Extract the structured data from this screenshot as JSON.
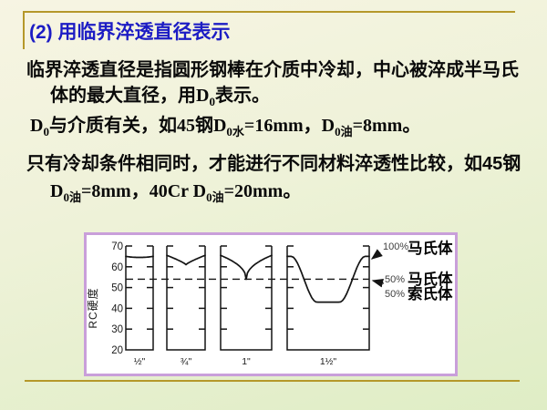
{
  "slide": {
    "title": "(2) 用临界淬透直径表示",
    "p1l1": "临界淬透直径是指圆形钢棒在介质中冷却，中心被淬成半马氏",
    "p1l2": [
      {
        "t": "体的最大直径，用"
      },
      {
        "t": "D"
      },
      {
        "t": "0"
      },
      {
        "t": "表示。"
      }
    ],
    "p2": [
      {
        "t": "D"
      },
      {
        "t": "0"
      },
      {
        "t": "与介质有关，如"
      },
      {
        "t": "45"
      },
      {
        "t": "钢"
      },
      {
        "t": "D"
      },
      {
        "t": "0水"
      },
      {
        "t": "=16mm"
      },
      {
        "t": "，"
      },
      {
        "t": "D"
      },
      {
        "t": "0油"
      },
      {
        "t": "=8mm"
      },
      {
        "t": "。"
      }
    ],
    "p3l1": "只有冷却条件相同时，才能进行不同材料淬透性比较，如45钢",
    "p3l2": [
      {
        "t": "D"
      },
      {
        "t": "0油"
      },
      {
        "t": "=8mm"
      },
      {
        "t": "，"
      },
      {
        "t": "40Cr D"
      },
      {
        "t": "0油"
      },
      {
        "t": "=20mm"
      },
      {
        "t": "。"
      }
    ]
  },
  "colors": {
    "title_blue": "#1c1cc4",
    "gold_rule": "#b5982a",
    "chart_border_purple": "#c99fda",
    "chart_background": "#ffffff",
    "body_text": "#0a0a0a",
    "annotation_percent_gray": "#3f3f3f"
  },
  "chart_data": {
    "type": "line",
    "title": "",
    "xlabel": "",
    "ylabel": "RC硬度",
    "ylim": [
      20,
      70
    ],
    "yticks": [
      70,
      60,
      50,
      40,
      30,
      20
    ],
    "grid": false,
    "half_martensite_hardness": 54,
    "specimens": [
      {
        "label": "½\"",
        "surface": 65,
        "center": 64.5,
        "profile": "shallow"
      },
      {
        "label": "¾\"",
        "surface": 65.5,
        "center": 61,
        "profile": "v"
      },
      {
        "label": "1\"",
        "surface": 65.5,
        "center": 54,
        "profile": "sharp-v"
      },
      {
        "label": "1½\"",
        "surface": 65,
        "center": 43,
        "profile": "wide-u"
      }
    ],
    "annotations": [
      {
        "pct": "100%",
        "label": "马氏体"
      },
      {
        "pct": "50%",
        "label": "马氏体"
      },
      {
        "pct": "50%",
        "label": "索氏体"
      }
    ],
    "legend": "none"
  }
}
